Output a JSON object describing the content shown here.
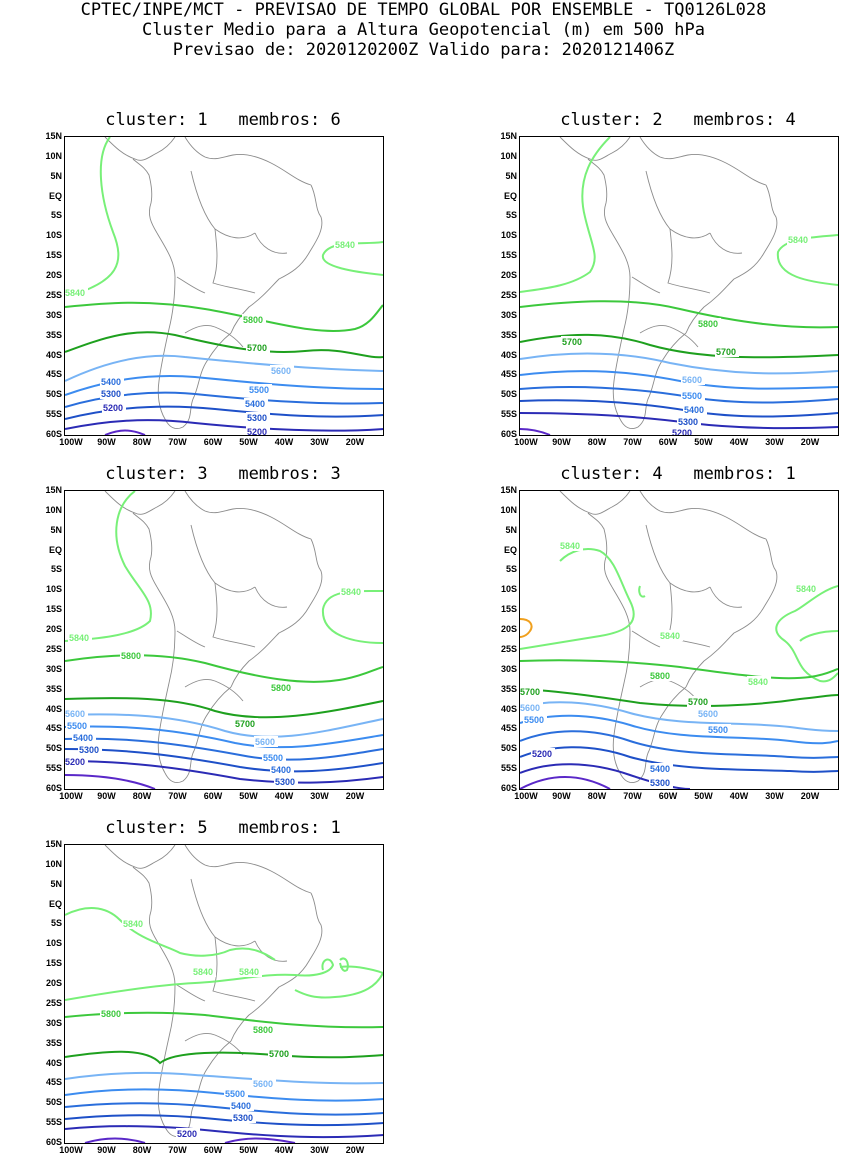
{
  "header": {
    "line1": "CPTEC/INPE/MCT - PREVISAO DE TEMPO GLOBAL POR ENSEMBLE - TQ0126L028",
    "line2": "Cluster Medio para a Altura Geopotencial (m) em 500 hPa",
    "line3": "Previsao de: 2020120200Z   Valido para: 2020121406Z"
  },
  "axes": {
    "y_ticks": [
      "15N",
      "10N",
      "5N",
      "EQ",
      "5S",
      "10S",
      "15S",
      "20S",
      "25S",
      "30S",
      "35S",
      "40S",
      "45S",
      "50S",
      "55S",
      "60S"
    ],
    "x_ticks": [
      "100W",
      "90W",
      "80W",
      "70W",
      "60W",
      "50W",
      "40W",
      "30W",
      "20W"
    ]
  },
  "colors": {
    "c5200": "#2b2bb5",
    "c5300": "#1e50c8",
    "c5400": "#2a6edc",
    "c5500": "#3c8cf0",
    "c5600": "#78b4f5",
    "c5700": "#1ea01e",
    "c5800": "#3cc83c",
    "c5840": "#78f078",
    "c_low": "#5a28c8",
    "c_orange": "#f0a01e",
    "coast": "#8c8c8c"
  },
  "panels": [
    {
      "title": "cluster: 1   membros: 6",
      "labels": [
        "5840",
        "5840",
        "5800",
        "5700",
        "5600",
        "5500",
        "5400",
        "5400",
        "5300",
        "5300",
        "5200",
        "5200"
      ]
    },
    {
      "title": "cluster: 2   membros: 4",
      "labels": [
        "5840",
        "5800",
        "5700",
        "5700",
        "5600",
        "5500",
        "5400",
        "5300",
        "5200"
      ]
    },
    {
      "title": "cluster: 3   membros: 3",
      "labels": [
        "5840",
        "5840",
        "5800",
        "5800",
        "5700",
        "5600",
        "5600",
        "5500",
        "5500",
        "5400",
        "5400",
        "5300",
        "5300",
        "5200"
      ]
    },
    {
      "title": "cluster: 4   membros: 1",
      "labels": [
        "5840",
        "5840",
        "5840",
        "5840",
        "5800",
        "5700",
        "5700",
        "5600",
        "5600",
        "5500",
        "5500",
        "5400",
        "5300",
        "5200"
      ]
    },
    {
      "title": "cluster: 5   membros: 1",
      "labels": [
        "5840",
        "5840",
        "5840",
        "5800",
        "5800",
        "5700",
        "5600",
        "5500",
        "5400",
        "5300",
        "5200"
      ]
    }
  ]
}
